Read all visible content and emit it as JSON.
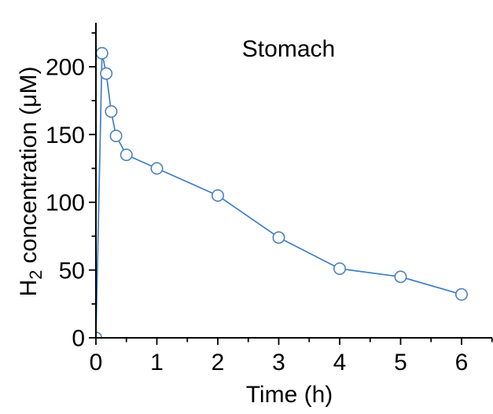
{
  "figure": {
    "background": "#ffffff"
  },
  "chart_data": {
    "type": "line",
    "title": "Stomach",
    "xlabel": "Time (h)",
    "ylabel": {
      "pre": "H",
      "sub": "2",
      "post": " concentration (μM)"
    },
    "series": [
      {
        "name": "H2 concentration (stomach)",
        "x": [
          0,
          0.1,
          0.17,
          0.25,
          0.33,
          0.5,
          1,
          2,
          3,
          4,
          5,
          6
        ],
        "y": [
          0,
          210,
          195,
          167,
          149,
          135,
          125,
          105,
          74,
          51,
          45,
          32
        ]
      }
    ],
    "xlim": [
      0,
      6.5
    ],
    "ylim": [
      0,
      232
    ],
    "x_major_ticks": [
      0,
      1,
      2,
      3,
      4,
      5,
      6
    ],
    "x_minor_ticks": [
      0.5,
      1.5,
      2.5,
      3.5,
      4.5,
      5.5,
      6.5
    ],
    "y_major_ticks": [
      0,
      50,
      100,
      150,
      200
    ],
    "y_minor_ticks": [
      25,
      75,
      125,
      175,
      225
    ],
    "grid": false,
    "legend": false,
    "marker": "open-circle",
    "colors": {
      "line": "#3f7ec5",
      "marker_stroke": "#4d82bb",
      "marker_fill": "#ffffff",
      "axis": "#000000",
      "text": "#000000"
    }
  }
}
